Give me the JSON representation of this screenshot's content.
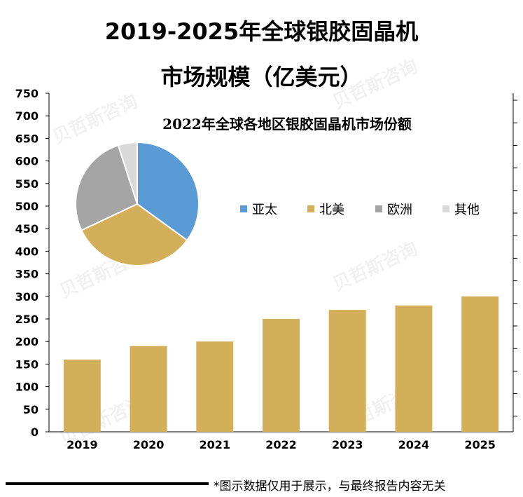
{
  "title_line1": "2019-2025年全球银胶固晶机",
  "title_line2": "市场规模（亿美元）",
  "footnote": "*图示数据仅用于展示，与最终报告内容无关",
  "watermark": "贝哲斯咨询",
  "colors": {
    "bar": "#D4AF5A",
    "asia_pacific": "#5B9BD5",
    "north_america": "#D4AF5A",
    "europe": "#A5A5A5",
    "other": "#D9D9D9"
  },
  "chart_data": [
    {
      "type": "bar",
      "title": "2019-2025年全球银胶固晶机市场规模（亿美元）",
      "categories": [
        "2019",
        "2020",
        "2021",
        "2022",
        "2023",
        "2024",
        "2025"
      ],
      "values": [
        160,
        190,
        200,
        250,
        270,
        280,
        300
      ],
      "ylim": [
        0,
        750
      ],
      "yticks": [
        0,
        50,
        100,
        150,
        200,
        250,
        300,
        350,
        400,
        450,
        500,
        550,
        600,
        650,
        700,
        750
      ],
      "xlabel": "",
      "ylabel": "",
      "grid": false
    },
    {
      "type": "pie",
      "title": "2022年全球各地区银胶固晶机市场份额",
      "labels": [
        "亚太",
        "北美",
        "欧洲",
        "其他"
      ],
      "values": [
        35,
        33,
        27,
        5
      ],
      "legend": "right"
    }
  ]
}
